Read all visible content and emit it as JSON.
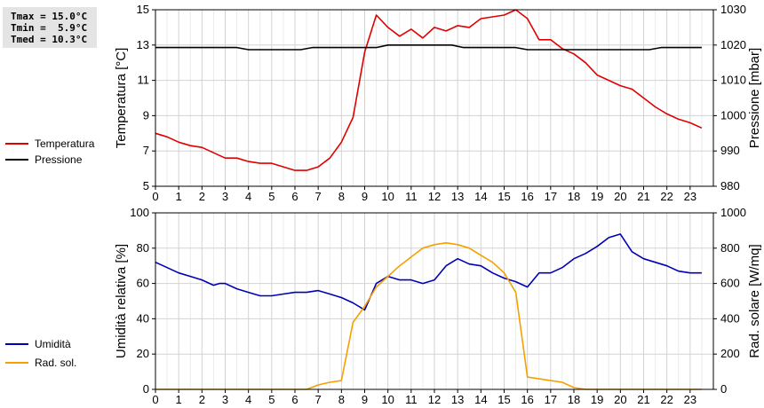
{
  "stats": {
    "tmax": "Tmax = 15.0°C",
    "tmin": "Tmin =  5.9°C",
    "tmed": "Tmed = 10.3°C"
  },
  "colors": {
    "temperature": "#e00000",
    "pressure": "#000000",
    "humidity": "#0000b4",
    "radiation": "#f5a000",
    "grid": "#d2d2d2",
    "minor_grid": "#ebebeb"
  },
  "legend_top": [
    {
      "label": "Temperatura",
      "color": "#e00000"
    },
    {
      "label": "Pressione",
      "color": "#000000"
    }
  ],
  "legend_bottom": [
    {
      "label": "Umidità",
      "color": "#0000b4"
    },
    {
      "label": "Rad. sol.",
      "color": "#f5a000"
    }
  ],
  "chart_data": [
    {
      "type": "line",
      "xlim": [
        0,
        24
      ],
      "xticks": [
        "0",
        "1",
        "2",
        "3",
        "4",
        "5",
        "6",
        "7",
        "8",
        "9",
        "10",
        "11",
        "12",
        "13",
        "14",
        "15",
        "16",
        "17",
        "18",
        "19",
        "20",
        "21",
        "22",
        "23"
      ],
      "ylabel": "Temperatura [°C]",
      "ylim": [
        5,
        15
      ],
      "yticks": [
        "5",
        "7",
        "9",
        "11",
        "13",
        "15"
      ],
      "y2label": "Pressione [mbar]",
      "y2lim": [
        980,
        1030
      ],
      "y2ticks": [
        "980",
        "990",
        "1000",
        "1010",
        "1020",
        "1030"
      ],
      "grid": true,
      "legend": "left",
      "series": [
        {
          "name": "Temperatura",
          "axis": "left",
          "x": [
            0,
            0.5,
            1,
            1.5,
            2,
            2.5,
            3,
            3.5,
            4,
            4.5,
            5,
            5.5,
            6,
            6.25,
            6.5,
            7,
            7.5,
            8,
            8.5,
            9,
            9.5,
            10,
            10.5,
            11,
            11.5,
            12,
            12.5,
            13,
            13.5,
            14,
            14.5,
            15,
            15.5,
            16,
            16.5,
            17,
            17.5,
            18,
            18.5,
            19,
            19.5,
            20,
            20.5,
            21,
            21.5,
            22,
            22.5,
            23,
            23.5
          ],
          "values": [
            8.0,
            7.8,
            7.5,
            7.3,
            7.2,
            6.9,
            6.6,
            6.6,
            6.4,
            6.3,
            6.3,
            6.1,
            5.9,
            5.9,
            5.9,
            6.1,
            6.6,
            7.5,
            8.9,
            12.6,
            14.7,
            14.0,
            13.5,
            13.9,
            13.4,
            14.0,
            13.8,
            14.1,
            14.0,
            14.5,
            14.6,
            14.7,
            15.0,
            14.5,
            13.3,
            13.3,
            12.8,
            12.5,
            12.0,
            11.3,
            11.0,
            10.7,
            10.5,
            10.0,
            9.5,
            9.1,
            8.8,
            8.6,
            8.3
          ]
        },
        {
          "name": "Pressione",
          "axis": "right",
          "x": [
            0,
            3.5,
            4,
            6.25,
            6.75,
            9.5,
            10,
            12.75,
            13.25,
            15.5,
            16,
            21.25,
            21.75,
            23.5
          ],
          "values": [
            1019.3,
            1019.3,
            1018.7,
            1018.7,
            1019.3,
            1019.3,
            1020.0,
            1020.0,
            1019.3,
            1019.3,
            1018.7,
            1018.7,
            1019.3,
            1019.3
          ]
        }
      ]
    },
    {
      "type": "line",
      "xlim": [
        0,
        24
      ],
      "xticks": [
        "0",
        "1",
        "2",
        "3",
        "4",
        "5",
        "6",
        "7",
        "8",
        "9",
        "10",
        "11",
        "12",
        "13",
        "14",
        "15",
        "16",
        "17",
        "18",
        "19",
        "20",
        "21",
        "22",
        "23"
      ],
      "ylabel": "Umidità relativa [%]",
      "ylim": [
        0,
        100
      ],
      "yticks": [
        "0",
        "20",
        "40",
        "60",
        "80",
        "100"
      ],
      "y2label": "Rad. solare [W/mq]",
      "y2lim": [
        0,
        1000
      ],
      "y2ticks": [
        "0",
        "200",
        "400",
        "600",
        "800",
        "1000"
      ],
      "grid": true,
      "legend": "left",
      "series": [
        {
          "name": "Umidità",
          "axis": "left",
          "x": [
            0,
            0.5,
            1,
            1.5,
            2,
            2.5,
            2.75,
            3,
            3.5,
            4,
            4.5,
            5,
            5.5,
            6,
            6.5,
            7,
            7.5,
            8,
            8.5,
            9,
            9.5,
            10,
            10.5,
            11,
            11.5,
            12,
            12.5,
            13,
            13.5,
            14,
            14.5,
            15,
            15.5,
            16,
            16.5,
            17,
            17.5,
            18,
            18.5,
            19,
            19.5,
            20,
            20.5,
            21,
            21.5,
            22,
            22.5,
            23,
            23.5
          ],
          "values": [
            72,
            69,
            66,
            64,
            62,
            59,
            60,
            60,
            57,
            55,
            53,
            53,
            54,
            55,
            55,
            56,
            54,
            52,
            49,
            45,
            60,
            64,
            62,
            62,
            60,
            62,
            70,
            74,
            71,
            70,
            66,
            63,
            61,
            58,
            66,
            66,
            69,
            74,
            77,
            81,
            86,
            88,
            78,
            74,
            72,
            70,
            67,
            66,
            66
          ]
        },
        {
          "name": "Rad. sol.",
          "axis": "right",
          "x": [
            0,
            6.5,
            7,
            7.5,
            8,
            8.5,
            9,
            9.5,
            10,
            10.5,
            11,
            11.5,
            12,
            12.5,
            13,
            13.5,
            14,
            14.5,
            15,
            15.5,
            16,
            16.5,
            17,
            17.5,
            18,
            18.5,
            23.5
          ],
          "values": [
            0,
            0,
            25,
            40,
            50,
            380,
            470,
            580,
            640,
            700,
            750,
            800,
            820,
            830,
            820,
            800,
            760,
            720,
            660,
            550,
            70,
            60,
            50,
            40,
            10,
            0,
            0
          ]
        }
      ]
    }
  ]
}
